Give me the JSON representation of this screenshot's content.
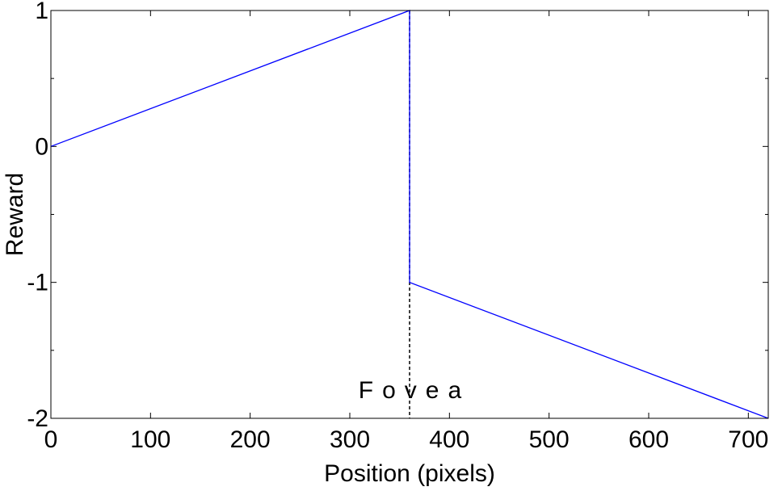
{
  "chart_data": {
    "type": "line",
    "title": "",
    "xlabel": "Position (pixels)",
    "ylabel": "Reward",
    "xlim": [
      0,
      720
    ],
    "ylim": [
      -2,
      1
    ],
    "xticks": [
      0,
      100,
      200,
      300,
      400,
      500,
      600,
      700
    ],
    "yticks": [
      -2,
      -1,
      0,
      1
    ],
    "grid": false,
    "legend": "none",
    "series": [
      {
        "color": "#0000ff",
        "points": [
          [
            0,
            0
          ],
          [
            360,
            1
          ],
          [
            360,
            -1
          ],
          [
            720,
            -2
          ]
        ]
      }
    ],
    "vline": {
      "x": 360,
      "style": "dashed",
      "color": "#000000"
    },
    "annotations": [
      {
        "text": "Fovea",
        "x": 360,
        "y": -1.78
      }
    ]
  }
}
